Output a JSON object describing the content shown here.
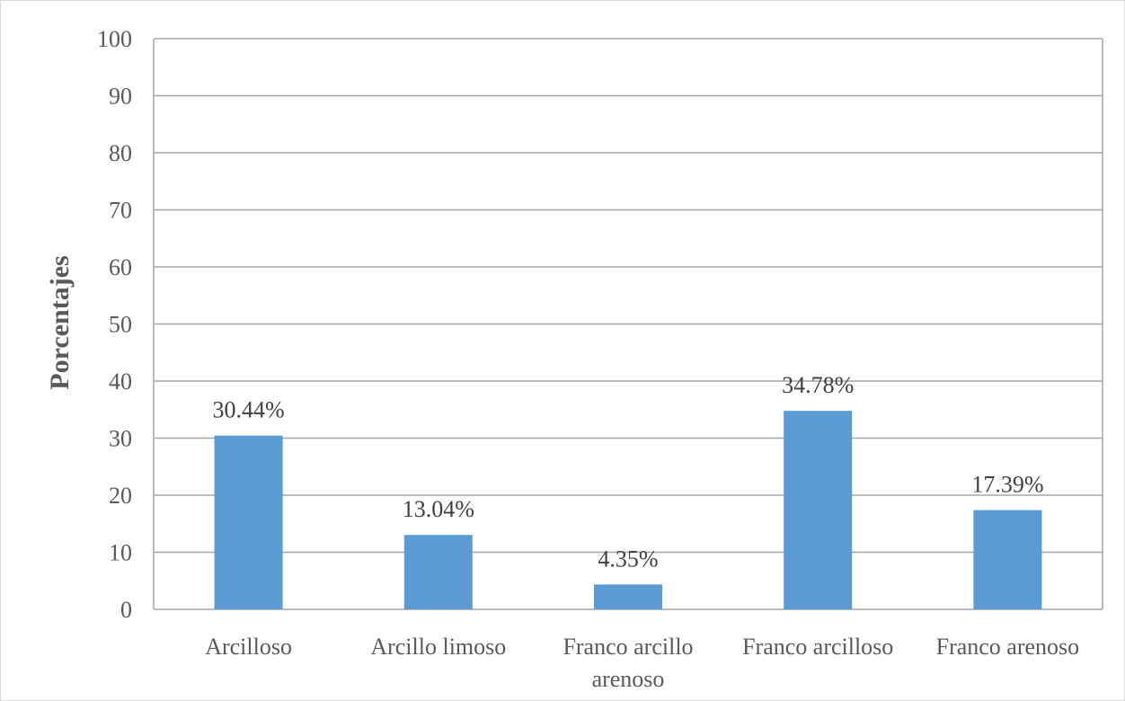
{
  "chart_data": {
    "type": "bar",
    "title": "",
    "xlabel": "",
    "ylabel": "Porcentajes",
    "categories": [
      [
        "Arcilloso"
      ],
      [
        "Arcillo limoso"
      ],
      [
        "Franco arcillo",
        "arenoso"
      ],
      [
        "Franco arcilloso"
      ],
      [
        "Franco arenoso"
      ]
    ],
    "values": [
      30.44,
      13.04,
      4.35,
      34.78,
      17.39
    ],
    "data_labels": [
      "30.44%",
      "13.04%",
      "4.35%",
      "34.78%",
      "17.39%"
    ],
    "ylim": [
      0,
      100
    ],
    "yticks": [
      0,
      10,
      20,
      30,
      40,
      50,
      60,
      70,
      80,
      90,
      100
    ],
    "grid": true,
    "legend": "none",
    "bar_color": "#5b9bd5",
    "grid_color": "#a6a6a6"
  }
}
